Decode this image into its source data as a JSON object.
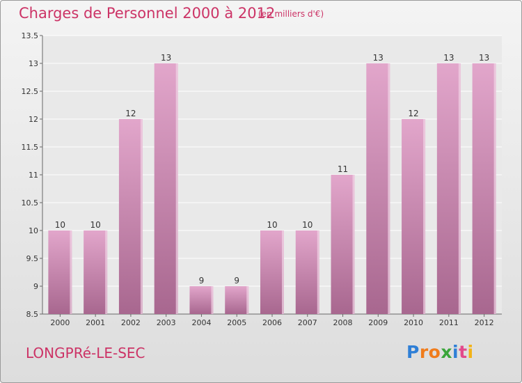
{
  "header": {
    "title": "Charges de Personnel 2000 à 2012",
    "subtitle": "(en milliers d'€)"
  },
  "footer": {
    "commune": "LONGPRé-LE-SEC",
    "brand": "Proxiti"
  },
  "colors": {
    "title": "#cc3366",
    "bar_top": "#e2a6cb",
    "bar_bottom": "#a8678f",
    "bar_side": "#f1d4e5"
  },
  "chart_data": {
    "type": "bar",
    "categories": [
      "2000",
      "2001",
      "2002",
      "2003",
      "2004",
      "2005",
      "2006",
      "2007",
      "2008",
      "2009",
      "2010",
      "2011",
      "2012"
    ],
    "values": [
      10,
      10,
      12,
      13,
      9,
      9,
      10,
      10,
      11,
      13,
      12,
      13,
      13
    ],
    "data_labels": [
      "10",
      "10",
      "12",
      "13",
      "9",
      "9",
      "10",
      "10",
      "11",
      "13",
      "12",
      "13",
      "13"
    ],
    "y_ticks": [
      "8.5",
      "9",
      "9.5",
      "10",
      "10.5",
      "11",
      "11.5",
      "12",
      "12.5",
      "13",
      "13.5"
    ],
    "ylim": [
      8.5,
      13.5
    ],
    "grid": true
  }
}
